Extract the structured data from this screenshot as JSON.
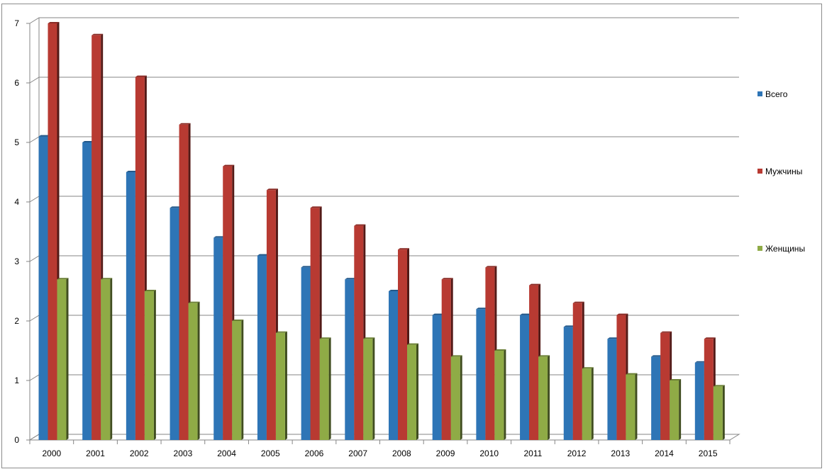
{
  "chart_data": {
    "type": "bar",
    "title": "",
    "xlabel": "",
    "ylabel": "",
    "ylim": [
      0,
      7
    ],
    "yticks": [
      0,
      1,
      2,
      3,
      4,
      5,
      6,
      7
    ],
    "grid": true,
    "legend_position": "right",
    "categories": [
      "2000",
      "2001",
      "2002",
      "2003",
      "2004",
      "2005",
      "2006",
      "2007",
      "2008",
      "2009",
      "2010",
      "2011",
      "2012",
      "2013",
      "2014",
      "2015"
    ],
    "series": [
      {
        "name": "Всего",
        "color": "#2e75b6",
        "values": [
          5.1,
          5.0,
          4.5,
          3.9,
          3.4,
          3.1,
          2.9,
          2.7,
          2.5,
          2.1,
          2.2,
          2.1,
          1.9,
          1.7,
          1.4,
          1.3
        ]
      },
      {
        "name": "Мужчины",
        "color": "#b83a32",
        "values": [
          7.0,
          6.8,
          6.1,
          5.3,
          4.6,
          4.2,
          3.9,
          3.6,
          3.2,
          2.7,
          2.9,
          2.6,
          2.3,
          2.1,
          1.8,
          1.7
        ]
      },
      {
        "name": "Женщины",
        "color": "#8fab46",
        "values": [
          2.7,
          2.7,
          2.5,
          2.3,
          2.0,
          1.8,
          1.7,
          1.7,
          1.6,
          1.4,
          1.5,
          1.4,
          1.2,
          1.1,
          1.0,
          0.9
        ]
      }
    ]
  }
}
